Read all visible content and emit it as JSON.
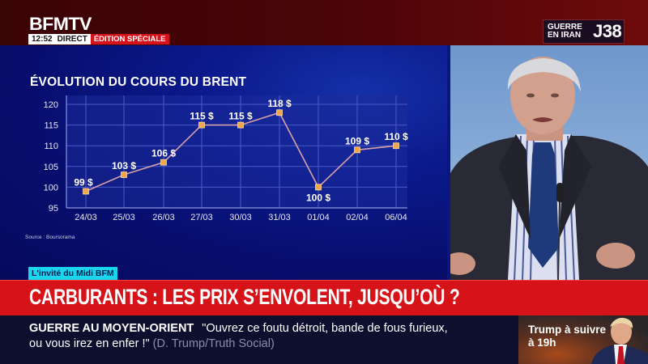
{
  "channel": {
    "logo": "BFMTV",
    "time": "12:52",
    "status": "DIRECT",
    "edition": "ÉDITION SPÉCIALE"
  },
  "badge": {
    "line1": "GUERRE",
    "line2": "EN IRAN",
    "day": "J38"
  },
  "chart_panel": {
    "title": "ÉVOLUTION DU COURS DU BRENT",
    "source": "Source : Boursorama"
  },
  "chart_data": {
    "type": "line",
    "title": "ÉVOLUTION DU COURS DU BRENT",
    "categories": [
      "24/03",
      "25/03",
      "26/03",
      "27/03",
      "30/03",
      "31/03",
      "01/04",
      "02/04",
      "06/04"
    ],
    "values": [
      99,
      103,
      106,
      115,
      115,
      118,
      100,
      109,
      110
    ],
    "point_labels": [
      "99 $",
      "103 $",
      "106 $",
      "115 $",
      "115 $",
      "118 $",
      "100 $",
      "109 $",
      "110 $"
    ],
    "yticks": [
      95,
      100,
      105,
      110,
      115,
      120
    ],
    "ylim": [
      95,
      120
    ],
    "xlabel": "",
    "ylabel": "",
    "grid": true,
    "legend": "none",
    "line_color": "#d8a0a8",
    "marker_color": "#f0a64a",
    "source": "Source : Boursorama"
  },
  "invite_tag": "L'invité du Midi BFM",
  "headline": "CARBURANTS : LES PRIX S’ENVOLENT, JUSQU’OÙ ?",
  "ticker": {
    "category": "GUERRE AU MOYEN-ORIENT",
    "quote_line1": "\"Ouvrez ce foutu détroit, bande de fous furieux,",
    "quote_line2": "ou vous irez en enfer !\"",
    "attribution": "(D. Trump/Truth Social)"
  },
  "promo": {
    "line1": "Trump à suivre",
    "line2": "à 19h"
  }
}
